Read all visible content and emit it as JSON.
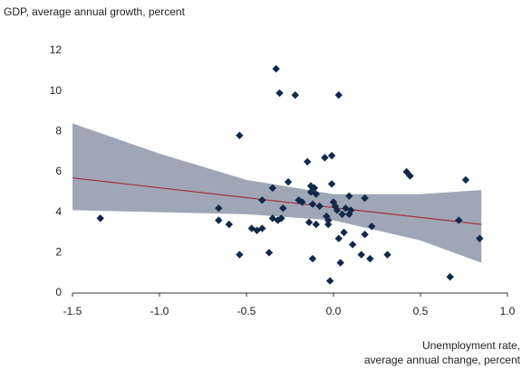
{
  "chart_data": {
    "type": "scatter",
    "y_label": "GDP, average annual growth, percent",
    "x_label": [
      "Unemployment rate,",
      "average annual change, percent"
    ],
    "xlim": [
      -1.5,
      1.0
    ],
    "xticks": [
      -1.5,
      {
        "value": -1,
        "label": "-1.0"
      },
      -0.5,
      {
        "value": 0,
        "label": "0.0"
      },
      0.5,
      {
        "value": 1,
        "label": "1.0"
      }
    ],
    "ylim": [
      0,
      12
    ],
    "yticks": [
      0,
      2,
      4,
      6,
      8,
      10,
      12
    ],
    "grid": false,
    "points": {
      "color": "#10294a",
      "x": [
        -1.34,
        -0.66,
        -0.66,
        -0.6,
        -0.54,
        -0.54,
        -0.47,
        -0.44,
        -0.41,
        -0.41,
        -0.37,
        -0.35,
        -0.35,
        -0.33,
        -0.32,
        -0.31,
        -0.3,
        -0.29,
        -0.26,
        -0.22,
        -0.2,
        -0.18,
        -0.15,
        -0.14,
        -0.13,
        -0.13,
        -0.12,
        -0.12,
        -0.11,
        -0.1,
        -0.1,
        -0.08,
        -0.05,
        -0.04,
        -0.03,
        -0.03,
        -0.02,
        -0.01,
        -0.01,
        0,
        0.01,
        0.02,
        0.03,
        0.03,
        0.04,
        0.05,
        0.06,
        0.07,
        0.09,
        0.09,
        0.11,
        0.1,
        0.16,
        0.18,
        0.18,
        0.21,
        0.22,
        0.31,
        0.42,
        0.44,
        0.67,
        0.72,
        0.76,
        0.84
      ],
      "y": [
        3.7,
        3.6,
        4.2,
        3.4,
        7.8,
        1.9,
        3.2,
        3.1,
        4.6,
        3.2,
        2.0,
        5.2,
        3.7,
        11.1,
        3.6,
        9.9,
        3.7,
        4.2,
        5.5,
        9.8,
        4.6,
        4.5,
        6.5,
        3.5,
        5.0,
        5.3,
        4.4,
        1.7,
        5.2,
        3.4,
        4.9,
        4.3,
        6.7,
        3.8,
        3.6,
        3.4,
        0.6,
        6.8,
        5.4,
        4.5,
        4.3,
        4.1,
        9.8,
        2.7,
        1.5,
        3.9,
        3.0,
        4.2,
        4.8,
        3.9,
        2.4,
        4.1,
        1.9,
        4.7,
        2.9,
        1.7,
        3.3,
        1.9,
        6.0,
        5.8,
        0.8,
        3.6,
        5.6,
        2.7
      ]
    },
    "trend": {
      "color": "#a3303c",
      "x": [
        -1.5,
        0.85
      ],
      "y": [
        5.7,
        3.4
      ]
    },
    "band": {
      "color": "#8e98aa",
      "x": [
        -1.5,
        -1.0,
        -0.5,
        0,
        0.5,
        0.85
      ],
      "upper": [
        8.4,
        6.9,
        5.6,
        4.9,
        4.9,
        5.1
      ],
      "lower": [
        4.1,
        4.0,
        3.9,
        3.6,
        2.6,
        1.5
      ]
    }
  }
}
